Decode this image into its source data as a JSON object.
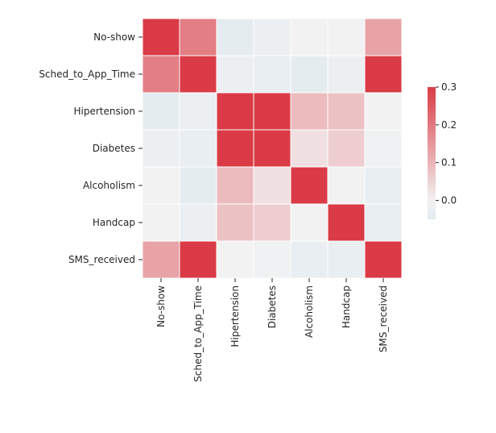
{
  "chart_data": {
    "type": "heatmap",
    "row_labels": [
      "No-show",
      "Sched_to_App_Time",
      "Hipertension",
      "Diabetes",
      "Alcoholism",
      "Handcap",
      "SMS_received"
    ],
    "col_labels": [
      "No-show",
      "Sched_to_App_Time",
      "Hipertension",
      "Diabetes",
      "Alcoholism",
      "Handcap",
      "SMS_received"
    ],
    "values": [
      [
        1.0,
        0.19,
        -0.04,
        -0.02,
        0.0,
        0.0,
        0.13
      ],
      [
        0.19,
        1.0,
        -0.02,
        -0.03,
        -0.04,
        -0.02,
        0.4
      ],
      [
        -0.04,
        -0.02,
        1.0,
        0.43,
        0.09,
        0.08,
        0.0
      ],
      [
        -0.02,
        -0.03,
        0.43,
        1.0,
        0.03,
        0.06,
        -0.01
      ],
      [
        0.0,
        -0.04,
        0.09,
        0.03,
        1.0,
        0.0,
        -0.03
      ],
      [
        0.0,
        -0.02,
        0.08,
        0.06,
        0.0,
        1.0,
        -0.03
      ],
      [
        0.13,
        0.4,
        0.0,
        -0.01,
        -0.03,
        -0.03,
        1.0
      ]
    ],
    "colorbar": {
      "vmin": -0.05,
      "vmax": 0.3,
      "ticks": [
        0.0,
        0.1,
        0.2,
        0.3
      ],
      "tick_labels": [
        "0.0",
        "0.1",
        "0.2",
        "0.3"
      ]
    },
    "colors": {
      "low": "#e2ebf0",
      "mid": "#f2f2f2",
      "high": "#da3b46"
    },
    "grid": false,
    "legend": "colorbar-right"
  }
}
